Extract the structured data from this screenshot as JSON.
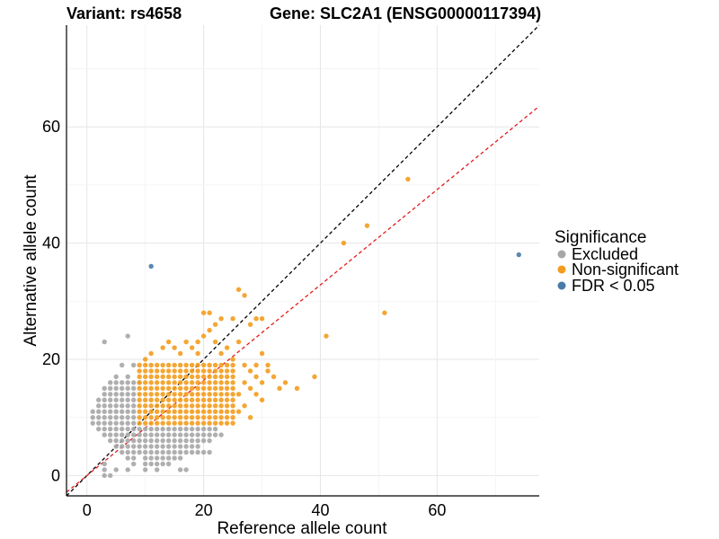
{
  "chart_data": {
    "type": "scatter",
    "title_left": "Variant: rs4658",
    "title_right": "Gene: SLC2A1 (ENSG00000117394)",
    "xlabel": "Reference allele count",
    "ylabel": "Alternative allele count",
    "xlim": [
      -3.5,
      77.5
    ],
    "ylim": [
      -3.5,
      77.5
    ],
    "xticks": [
      0,
      20,
      40,
      60
    ],
    "yticks": [
      0,
      20,
      40,
      60
    ],
    "grid": true,
    "reference_lines": [
      {
        "name": "identity",
        "slope": 1.0,
        "intercept": 0,
        "color": "#000000",
        "dash": true
      },
      {
        "name": "ratio",
        "slope": 0.82,
        "intercept": 0,
        "color": "#e31a1c",
        "dash": true
      }
    ],
    "legend": {
      "title": "Significance",
      "position": "right",
      "entries": [
        {
          "label": "Excluded",
          "color": "#a6a6a6"
        },
        {
          "label": "Non-significant",
          "color": "#f39c1d"
        },
        {
          "label": "FDR < 0.05",
          "color": "#4a7aa8"
        }
      ]
    },
    "series": [
      {
        "name": "Excluded",
        "color": "#a6a6a6",
        "points": [
          [
            3,
            23
          ],
          [
            7,
            24
          ],
          [
            6,
            19
          ],
          [
            8,
            19
          ],
          [
            5,
            17
          ],
          [
            7,
            17
          ],
          [
            9,
            16
          ],
          [
            4,
            16
          ],
          [
            5,
            16
          ],
          [
            6,
            16
          ],
          [
            7,
            16
          ],
          [
            8,
            16
          ],
          [
            3,
            15
          ],
          [
            4,
            15
          ],
          [
            5,
            15
          ],
          [
            6,
            15
          ],
          [
            7,
            15
          ],
          [
            8,
            15
          ],
          [
            3,
            14
          ],
          [
            4,
            14
          ],
          [
            5,
            14
          ],
          [
            6,
            14
          ],
          [
            7,
            14
          ],
          [
            8,
            14
          ],
          [
            2,
            13
          ],
          [
            3,
            13
          ],
          [
            4,
            13
          ],
          [
            5,
            13
          ],
          [
            6,
            13
          ],
          [
            7,
            13
          ],
          [
            8,
            13
          ],
          [
            2,
            12
          ],
          [
            3,
            12
          ],
          [
            4,
            12
          ],
          [
            5,
            12
          ],
          [
            6,
            12
          ],
          [
            7,
            12
          ],
          [
            8,
            12
          ],
          [
            1,
            11
          ],
          [
            2,
            11
          ],
          [
            3,
            11
          ],
          [
            4,
            11
          ],
          [
            5,
            11
          ],
          [
            6,
            11
          ],
          [
            7,
            11
          ],
          [
            8,
            11
          ],
          [
            1,
            10
          ],
          [
            2,
            10
          ],
          [
            3,
            10
          ],
          [
            4,
            10
          ],
          [
            5,
            10
          ],
          [
            6,
            10
          ],
          [
            7,
            10
          ],
          [
            8,
            10
          ],
          [
            1,
            9
          ],
          [
            2,
            9
          ],
          [
            3,
            9
          ],
          [
            4,
            9
          ],
          [
            5,
            9
          ],
          [
            6,
            9
          ],
          [
            7,
            9
          ],
          [
            8,
            9
          ],
          [
            2,
            8
          ],
          [
            3,
            8
          ],
          [
            4,
            8
          ],
          [
            5,
            8
          ],
          [
            6,
            8
          ],
          [
            7,
            8
          ],
          [
            8,
            8
          ],
          [
            3,
            7
          ],
          [
            4,
            7
          ],
          [
            5,
            7
          ],
          [
            6,
            7
          ],
          [
            7,
            7
          ],
          [
            8,
            7
          ],
          [
            4,
            6
          ],
          [
            5,
            6
          ],
          [
            6,
            6
          ],
          [
            7,
            6
          ],
          [
            8,
            6
          ],
          [
            5,
            5
          ],
          [
            6,
            5
          ],
          [
            7,
            5
          ],
          [
            8,
            5
          ],
          [
            6,
            4
          ],
          [
            7,
            4
          ],
          [
            8,
            4
          ],
          [
            7,
            3
          ],
          [
            8,
            3
          ],
          [
            8,
            2
          ],
          [
            3,
            2
          ],
          [
            3,
            1
          ],
          [
            3,
            0
          ],
          [
            4,
            0
          ],
          [
            5,
            1
          ],
          [
            7,
            1
          ],
          [
            9,
            8
          ],
          [
            10,
            8
          ],
          [
            11,
            8
          ],
          [
            12,
            8
          ],
          [
            13,
            8
          ],
          [
            14,
            8
          ],
          [
            15,
            8
          ],
          [
            16,
            8
          ],
          [
            17,
            8
          ],
          [
            18,
            8
          ],
          [
            19,
            8
          ],
          [
            20,
            8
          ],
          [
            21,
            8
          ],
          [
            22,
            8
          ],
          [
            9,
            7
          ],
          [
            10,
            7
          ],
          [
            11,
            7
          ],
          [
            12,
            7
          ],
          [
            13,
            7
          ],
          [
            14,
            7
          ],
          [
            15,
            7
          ],
          [
            16,
            7
          ],
          [
            17,
            7
          ],
          [
            18,
            7
          ],
          [
            19,
            7
          ],
          [
            20,
            7
          ],
          [
            21,
            7
          ],
          [
            22,
            7
          ],
          [
            23,
            7
          ],
          [
            9,
            6
          ],
          [
            10,
            6
          ],
          [
            11,
            6
          ],
          [
            12,
            6
          ],
          [
            13,
            6
          ],
          [
            14,
            6
          ],
          [
            15,
            6
          ],
          [
            16,
            6
          ],
          [
            17,
            6
          ],
          [
            18,
            6
          ],
          [
            19,
            6
          ],
          [
            20,
            6
          ],
          [
            21,
            6
          ],
          [
            9,
            5
          ],
          [
            10,
            5
          ],
          [
            11,
            5
          ],
          [
            12,
            5
          ],
          [
            13,
            5
          ],
          [
            14,
            5
          ],
          [
            15,
            5
          ],
          [
            16,
            5
          ],
          [
            17,
            5
          ],
          [
            18,
            5
          ],
          [
            19,
            5
          ],
          [
            9,
            4
          ],
          [
            10,
            4
          ],
          [
            11,
            4
          ],
          [
            12,
            4
          ],
          [
            13,
            4
          ],
          [
            14,
            4
          ],
          [
            15,
            4
          ],
          [
            16,
            4
          ],
          [
            17,
            4
          ],
          [
            18,
            4
          ],
          [
            19,
            4
          ],
          [
            20,
            4
          ],
          [
            21,
            4
          ],
          [
            10,
            3
          ],
          [
            11,
            3
          ],
          [
            12,
            3
          ],
          [
            13,
            3
          ],
          [
            14,
            3
          ],
          [
            15,
            3
          ],
          [
            16,
            3
          ],
          [
            10,
            2
          ],
          [
            11,
            2
          ],
          [
            12,
            2
          ],
          [
            13,
            2
          ],
          [
            14,
            2
          ],
          [
            10,
            1
          ],
          [
            12,
            1
          ],
          [
            16,
            1
          ],
          [
            17,
            1
          ],
          [
            20,
            4
          ]
        ]
      },
      {
        "name": "Non-significant",
        "color": "#f39c1d",
        "points": [
          [
            9,
            19
          ],
          [
            10,
            20
          ],
          [
            12,
            19
          ],
          [
            11,
            21
          ],
          [
            13,
            22
          ],
          [
            14,
            23
          ],
          [
            15,
            22
          ],
          [
            16,
            21
          ],
          [
            17,
            23
          ],
          [
            18,
            22
          ],
          [
            19,
            21
          ],
          [
            20,
            24
          ],
          [
            21,
            25
          ],
          [
            22,
            23
          ],
          [
            23,
            21
          ],
          [
            24,
            22
          ],
          [
            25,
            20
          ],
          [
            26,
            23
          ],
          [
            27,
            19
          ],
          [
            21,
            28
          ],
          [
            20,
            28
          ],
          [
            26,
            32
          ],
          [
            27,
            31
          ],
          [
            25,
            27
          ],
          [
            29,
            27
          ],
          [
            30,
            27
          ],
          [
            28,
            26
          ],
          [
            23,
            27
          ],
          [
            19,
            23
          ],
          [
            22,
            26
          ],
          [
            30,
            21
          ],
          [
            31,
            19
          ],
          [
            32,
            17
          ],
          [
            33,
            15
          ],
          [
            34,
            16
          ],
          [
            36,
            15
          ],
          [
            39,
            17
          ],
          [
            41,
            24
          ],
          [
            44,
            40
          ],
          [
            48,
            43
          ],
          [
            51,
            28
          ],
          [
            55,
            51
          ],
          [
            29,
            19
          ],
          [
            30,
            16
          ],
          [
            29,
            14
          ],
          [
            28,
            15
          ],
          [
            27,
            12
          ],
          [
            30,
            13
          ],
          [
            28,
            10
          ],
          [
            26,
            11
          ],
          [
            25,
            12
          ],
          [
            31,
            18
          ],
          [
            29,
            17
          ],
          [
            28,
            18
          ],
          [
            27,
            16
          ],
          [
            26,
            14
          ],
          [
            24,
            11
          ],
          [
            23,
            10
          ]
        ],
        "dense_block": {
          "x_range": [
            9,
            25
          ],
          "y_range": [
            9,
            19
          ]
        }
      },
      {
        "name": "FDR < 0.05",
        "color": "#4a7aa8",
        "points": [
          [
            11,
            36
          ],
          [
            74,
            38
          ]
        ]
      }
    ]
  }
}
